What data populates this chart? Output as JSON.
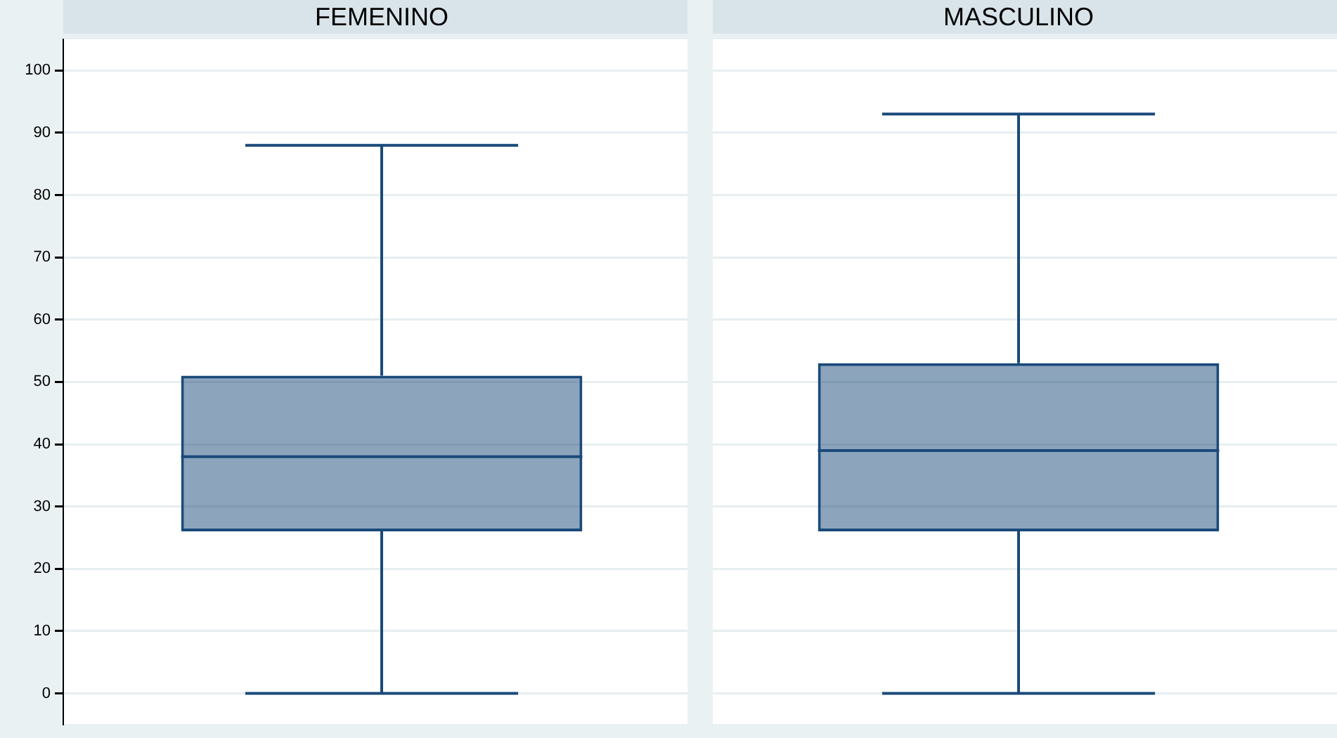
{
  "chart_data": {
    "type": "box",
    "categories": [
      "FEMENINO",
      "MASCULINO"
    ],
    "color": "#1a4a7a",
    "boxes": [
      {
        "low": 0,
        "q1": 26,
        "median": 38,
        "q3": 51,
        "high": 88
      },
      {
        "low": 0,
        "q1": 26,
        "median": 39,
        "q3": 53,
        "high": 93
      }
    ],
    "ylim": [
      -5,
      105
    ],
    "yticks": [
      0,
      10,
      20,
      30,
      40,
      50,
      60,
      70,
      80,
      90,
      100
    ],
    "grid": "y"
  }
}
